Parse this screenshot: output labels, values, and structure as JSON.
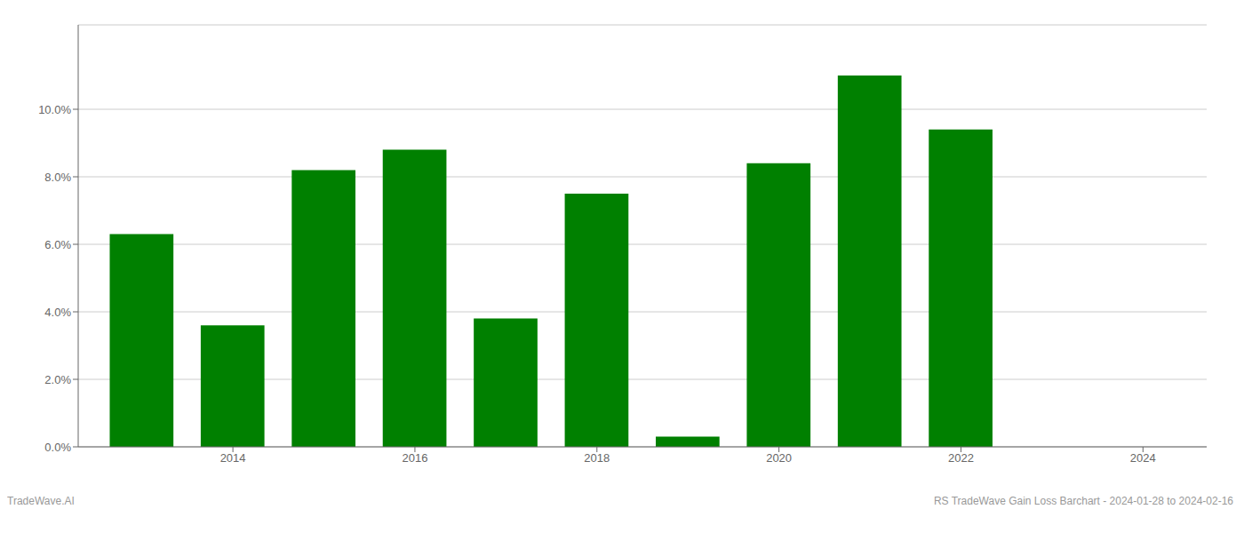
{
  "chart_data": {
    "type": "bar",
    "x": [
      2013,
      2014,
      2015,
      2016,
      2017,
      2018,
      2019,
      2020,
      2021,
      2022,
      2023
    ],
    "values": [
      0.063,
      0.036,
      0.082,
      0.088,
      0.038,
      0.075,
      0.003,
      0.084,
      0.11,
      0.094,
      0.0
    ],
    "color": "#008000",
    "xlim": [
      2012.3,
      2024.7
    ],
    "xticks": [
      2014,
      2016,
      2018,
      2020,
      2022,
      2024
    ],
    "ylim": [
      0,
      0.125
    ],
    "yticks": [
      {
        "value": 0.0,
        "label": "0.0%"
      },
      {
        "value": 0.02,
        "label": "2.0%"
      },
      {
        "value": 0.04,
        "label": "4.0%"
      },
      {
        "value": 0.06,
        "label": "6.0%"
      },
      {
        "value": 0.08,
        "label": "8.0%"
      },
      {
        "value": 0.1,
        "label": "10.0%"
      }
    ],
    "grid": true,
    "annotations": [
      "TradeWave.AI",
      "RS TradeWave Gain Loss Barchart - 2024-01-28 to 2024-02-16"
    ]
  }
}
